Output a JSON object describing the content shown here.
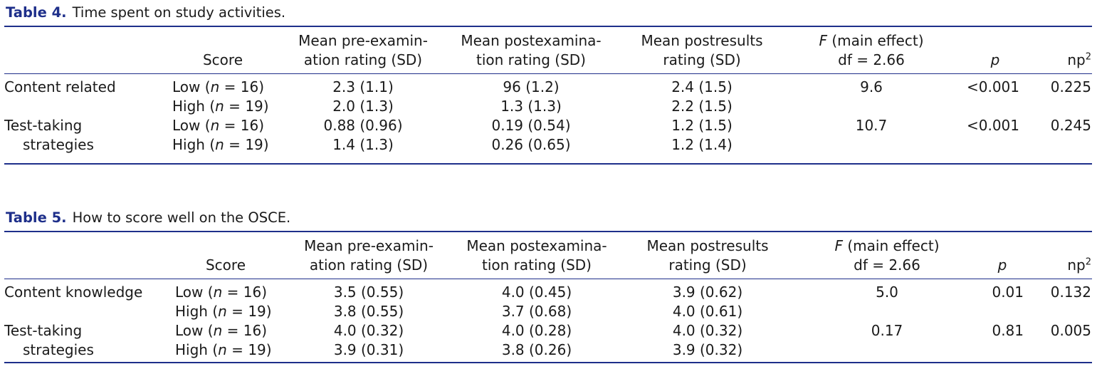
{
  "tables": [
    {
      "label": "Table 4.",
      "caption": "Time spent on study activities.",
      "headers": {
        "score": "Score",
        "pre_l1": "Mean pre-examin-",
        "pre_l2": "ation rating (SD)",
        "post_l1": "Mean postexamina-",
        "post_l2": "tion rating (SD)",
        "res_l1": "Mean postresults",
        "res_l2": "rating (SD)",
        "f_italic": "F",
        "f_rest": " (main effect)",
        "df": "df = 2.66",
        "p": "p",
        "np": "np",
        "np_sup": "2"
      },
      "rows": [
        {
          "category": "Content related",
          "category2": "",
          "level": "Low",
          "n": "16",
          "pre": "2.3 (1.1)",
          "post": "96 (1.2)",
          "res": "2.4 (1.5)",
          "f": "9.6",
          "p": "<0.001",
          "np": "0.225"
        },
        {
          "category": "",
          "category2": "",
          "level": "High",
          "n": "19",
          "pre": "2.0 (1.3)",
          "post": "1.3 (1.3)",
          "res": "2.2 (1.5)",
          "f": "",
          "p": "",
          "np": ""
        },
        {
          "category": "Test-taking",
          "category2": "",
          "level": "Low",
          "n": "16",
          "pre": "0.88 (0.96)",
          "post": "0.19 (0.54)",
          "res": "1.2 (1.5)",
          "f": "10.7",
          "p": "<0.001",
          "np": "0.245"
        },
        {
          "category": "",
          "category2": "strategies",
          "level": "High",
          "n": "19",
          "pre": "1.4 (1.3)",
          "post": "0.26 (0.65)",
          "res": "1.2 (1.4)",
          "f": "",
          "p": "",
          "np": ""
        }
      ]
    },
    {
      "label": "Table 5.",
      "caption": "How to score well on the OSCE.",
      "headers": {
        "score": "Score",
        "pre_l1": "Mean pre-examin-",
        "pre_l2": "ation rating (SD)",
        "post_l1": "Mean postexamina-",
        "post_l2": "tion rating (SD)",
        "res_l1": "Mean postresults",
        "res_l2": "rating (SD)",
        "f_italic": "F",
        "f_rest": " (main effect)",
        "df": "df = 2.66",
        "p": "p",
        "np": "np",
        "np_sup": "2"
      },
      "rows": [
        {
          "category": "Content knowledge",
          "category2": "",
          "level": "Low",
          "n": "16",
          "pre": "3.5 (0.55)",
          "post": "4.0 (0.45)",
          "res": "3.9 (0.62)",
          "f": "5.0",
          "p": "0.01",
          "np": "0.132"
        },
        {
          "category": "",
          "category2": "",
          "level": "High",
          "n": "19",
          "pre": "3.8 (0.55)",
          "post": "3.7 (0.68)",
          "res": "4.0 (0.61)",
          "f": "",
          "p": "",
          "np": ""
        },
        {
          "category": "Test-taking",
          "category2": "",
          "level": "Low",
          "n": "16",
          "pre": "4.0 (0.32)",
          "post": "4.0 (0.28)",
          "res": "4.0 (0.32)",
          "f": "0.17",
          "p": "0.81",
          "np": "0.005"
        },
        {
          "category": "",
          "category2": "strategies",
          "level": "High",
          "n": "19",
          "pre": "3.9 (0.31)",
          "post": "3.8 (0.26)",
          "res": "3.9 (0.32)",
          "f": "",
          "p": "",
          "np": ""
        }
      ]
    }
  ]
}
